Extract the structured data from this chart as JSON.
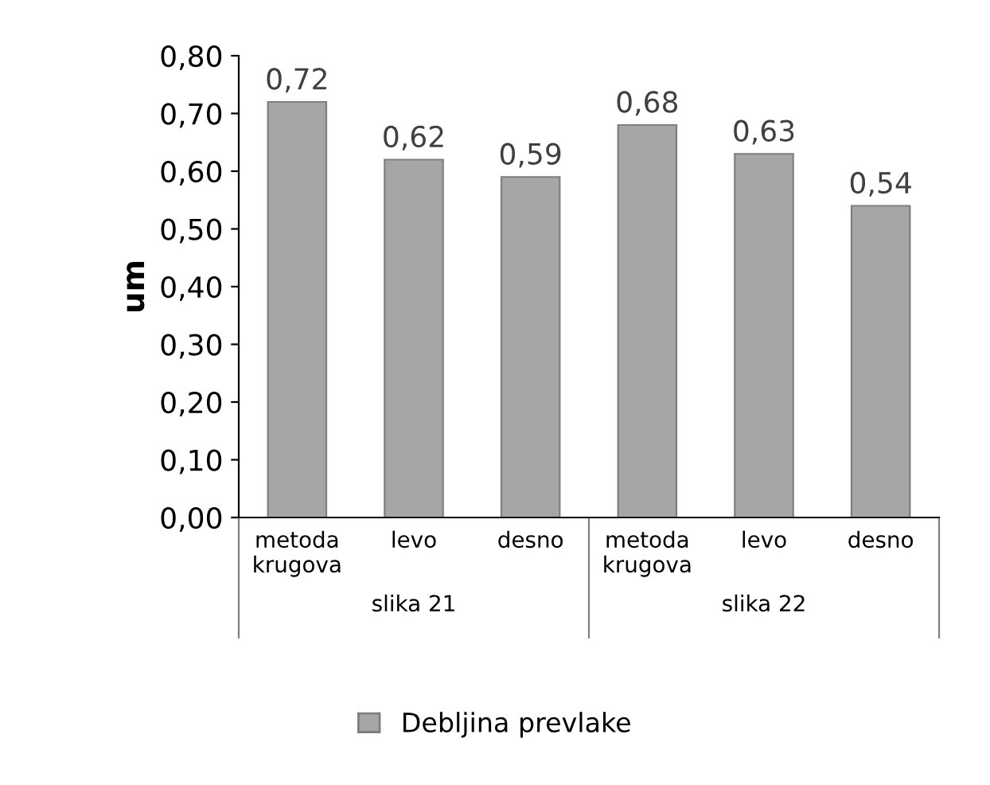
{
  "chart_data": {
    "type": "bar",
    "ylabel": "um",
    "categories": [
      "metoda krugova",
      "levo",
      "desno",
      "metoda krugova",
      "levo",
      "desno"
    ],
    "series": [
      {
        "name": "Debljina prevlake",
        "color": "#a6a6a6",
        "values": [
          0.72,
          0.62,
          0.59,
          0.68,
          0.63,
          0.54
        ],
        "value_labels": [
          "0,72",
          "0,62",
          "0,59",
          "0,68",
          "0,63",
          "0,54"
        ]
      }
    ],
    "annotations": [
      "slika 21",
      "slika 22"
    ],
    "ylim": [
      0,
      0.8
    ],
    "yticks": [
      {
        "value": 0,
        "label": "0,00"
      },
      {
        "value": 0.1,
        "label": "0,10"
      },
      {
        "value": 0.2,
        "label": "0,20"
      },
      {
        "value": 0.3,
        "label": "0,30"
      },
      {
        "value": 0.4,
        "label": "0,40"
      },
      {
        "value": 0.5,
        "label": "0,50"
      },
      {
        "value": 0.6,
        "label": "0,60"
      },
      {
        "value": 0.7,
        "label": "0,70"
      },
      {
        "value": 0.8,
        "label": "0,80"
      }
    ],
    "grid": false,
    "legend": "bottom"
  }
}
